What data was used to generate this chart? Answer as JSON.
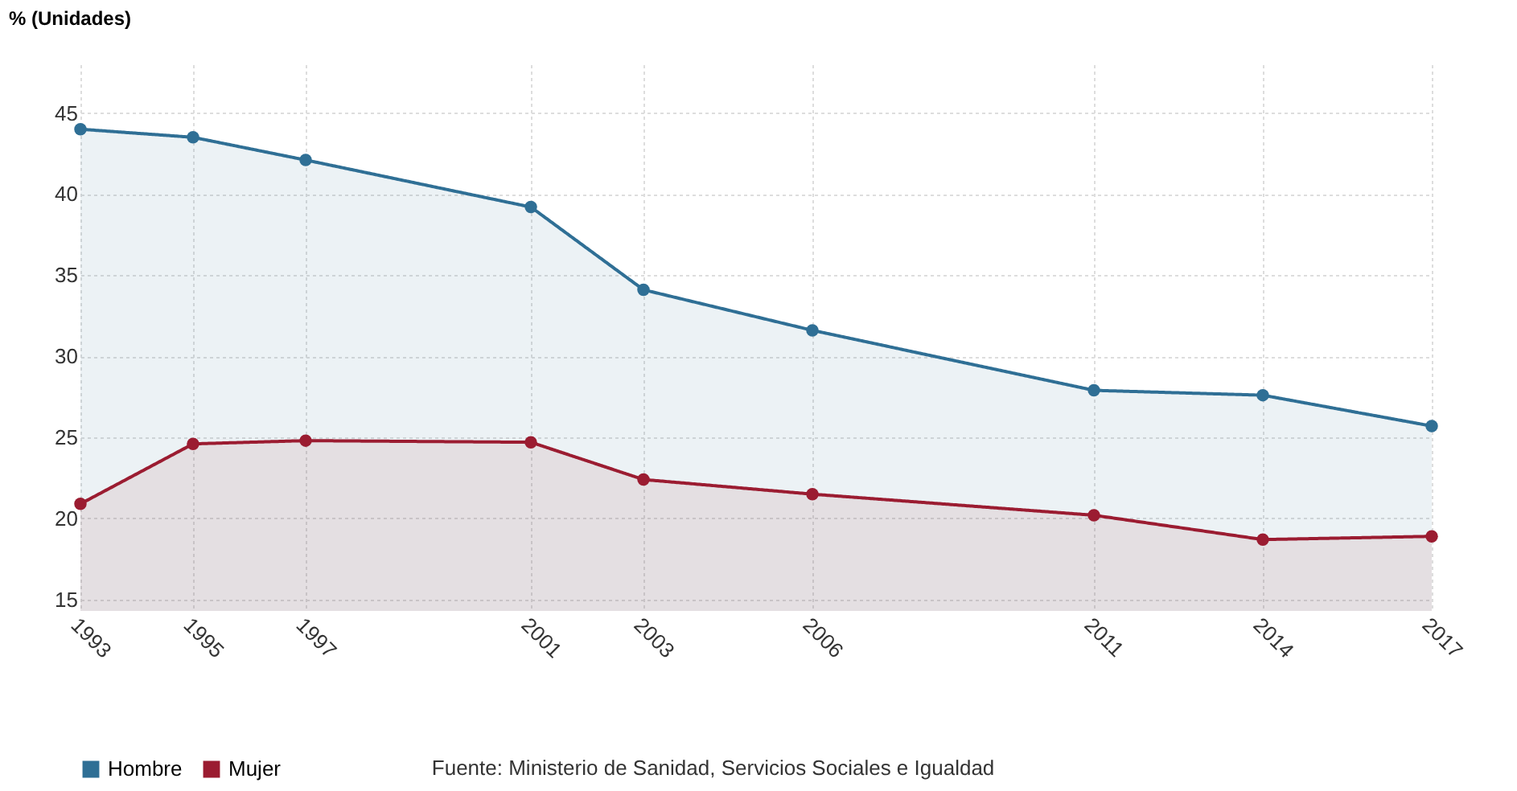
{
  "chart_data": {
    "type": "area",
    "ylabel": "% (Unidades)",
    "x": [
      1993,
      1995,
      1997,
      2001,
      2003,
      2006,
      2011,
      2014,
      2017
    ],
    "series": [
      {
        "name": "Hombre",
        "color": "#2f6f95",
        "values": [
          44.0,
          43.5,
          42.1,
          39.2,
          34.1,
          31.6,
          27.9,
          27.6,
          25.7
        ]
      },
      {
        "name": "Mujer",
        "color": "#9b1c31",
        "values": [
          20.9,
          24.6,
          24.8,
          24.7,
          22.4,
          21.5,
          20.2,
          18.7,
          18.9
        ]
      }
    ],
    "xlim": [
      1993,
      2017
    ],
    "xticks": [
      1993,
      1995,
      1997,
      2001,
      2003,
      2006,
      2011,
      2014,
      2017
    ],
    "ylim": [
      14.3,
      48
    ],
    "yticks": [
      15,
      20,
      25,
      30,
      35,
      40,
      45
    ],
    "grid": true,
    "legend": "bottom",
    "marker": "circle",
    "line_style": "solid",
    "annotations": [
      "Fuente: Ministerio de Sanidad, Servicios Sociales e Igualdad"
    ]
  }
}
